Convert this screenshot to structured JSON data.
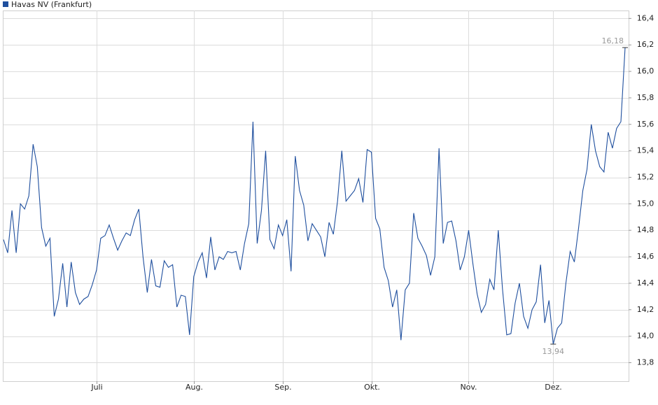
{
  "chart_data": {
    "type": "line",
    "categories": [
      null,
      null,
      null,
      null,
      null,
      null,
      null,
      null,
      null,
      null,
      null,
      null,
      null,
      null,
      null,
      null,
      null,
      null,
      null,
      null,
      null,
      null,
      "Juli",
      null,
      null,
      null,
      null,
      null,
      null,
      null,
      null,
      null,
      null,
      null,
      null,
      null,
      null,
      null,
      null,
      null,
      null,
      null,
      null,
      null,
      null,
      "Aug.",
      null,
      null,
      null,
      null,
      null,
      null,
      null,
      null,
      null,
      null,
      null,
      null,
      null,
      null,
      null,
      null,
      null,
      null,
      null,
      null,
      "Sep.",
      null,
      null,
      null,
      null,
      null,
      null,
      null,
      null,
      null,
      null,
      null,
      null,
      null,
      null,
      null,
      null,
      null,
      null,
      null,
      null,
      "Okt.",
      null,
      null,
      null,
      null,
      null,
      null,
      null,
      null,
      null,
      null,
      null,
      null,
      null,
      null,
      null,
      null,
      null,
      null,
      null,
      null,
      null,
      null,
      "Nov.",
      null,
      null,
      null,
      null,
      null,
      null,
      null,
      null,
      null,
      null,
      null,
      null,
      null,
      null,
      null,
      null,
      null,
      null,
      null,
      "Dez.",
      null,
      null,
      null,
      null,
      null,
      null,
      null,
      null,
      null,
      null,
      null,
      null,
      null,
      null,
      null,
      null,
      null
    ],
    "series": [
      {
        "name": "Havas NV (Frankfurt)",
        "color": "#1f4f9e",
        "values": [
          14.73,
          14.63,
          14.95,
          14.63,
          15.0,
          14.96,
          15.06,
          15.45,
          15.28,
          14.82,
          14.68,
          14.74,
          14.15,
          14.28,
          14.55,
          14.22,
          14.56,
          14.33,
          14.24,
          14.28,
          14.3,
          14.39,
          14.5,
          14.74,
          14.76,
          14.84,
          14.74,
          14.65,
          14.72,
          14.78,
          14.76,
          14.88,
          14.96,
          14.6,
          14.33,
          14.58,
          14.38,
          14.37,
          14.57,
          14.52,
          14.54,
          14.22,
          14.31,
          14.3,
          14.01,
          14.45,
          14.56,
          14.63,
          14.44,
          14.75,
          14.5,
          14.6,
          14.58,
          14.64,
          14.63,
          14.64,
          14.5,
          14.7,
          14.85,
          15.62,
          14.7,
          14.95,
          15.4,
          14.73,
          14.66,
          14.84,
          14.76,
          14.88,
          14.49,
          15.36,
          15.1,
          14.99,
          14.72,
          14.85,
          14.8,
          14.75,
          14.6,
          14.86,
          14.77,
          15.02,
          15.4,
          15.02,
          15.06,
          15.1,
          15.19,
          15.01,
          15.41,
          15.39,
          14.89,
          14.81,
          14.52,
          14.42,
          14.22,
          14.35,
          13.97,
          14.35,
          14.4,
          14.93,
          14.74,
          14.68,
          14.61,
          14.46,
          14.6,
          15.42,
          14.7,
          14.86,
          14.87,
          14.72,
          14.5,
          14.6,
          14.8,
          14.55,
          14.32,
          14.18,
          14.24,
          14.43,
          14.35,
          14.8,
          14.36,
          14.01,
          14.02,
          14.25,
          14.4,
          14.15,
          14.06,
          14.2,
          14.26,
          14.54,
          14.1,
          14.27,
          13.94,
          14.06,
          14.1,
          14.4,
          14.64,
          14.56,
          14.82,
          15.1,
          15.26,
          15.6,
          15.4,
          15.28,
          15.24,
          15.54,
          15.42,
          15.57,
          15.62,
          16.18
        ],
        "value_labels": [
          null,
          null,
          null,
          null,
          null,
          null,
          null,
          null,
          null,
          null,
          null,
          null,
          null,
          null,
          null,
          null,
          null,
          null,
          null,
          null,
          null,
          null,
          null,
          null,
          null,
          null,
          null,
          null,
          null,
          null,
          null,
          null,
          null,
          null,
          null,
          null,
          null,
          null,
          null,
          null,
          null,
          null,
          null,
          null,
          null,
          null,
          null,
          null,
          null,
          null,
          null,
          null,
          null,
          null,
          null,
          null,
          null,
          null,
          null,
          null,
          null,
          null,
          null,
          null,
          null,
          null,
          null,
          null,
          null,
          null,
          null,
          null,
          null,
          null,
          null,
          null,
          null,
          null,
          null,
          null,
          null,
          null,
          null,
          null,
          null,
          null,
          null,
          null,
          null,
          null,
          null,
          null,
          null,
          null,
          null,
          null,
          null,
          null,
          null,
          null,
          null,
          null,
          null,
          null,
          null,
          null,
          null,
          null,
          null,
          null,
          null,
          null,
          null,
          null,
          null,
          null,
          null,
          null,
          null,
          null,
          null,
          null,
          null,
          null,
          null,
          null,
          null,
          null,
          null,
          null,
          "13,94",
          null,
          null,
          null,
          null,
          null,
          null,
          null,
          null,
          null,
          null,
          null,
          null,
          null,
          null,
          null,
          null,
          "16,18"
        ]
      }
    ],
    "ylim": [
      13.66,
      16.46
    ],
    "yticks": [
      {
        "value": 13.8,
        "label": "13,8"
      },
      {
        "value": 14.0,
        "label": "14,0"
      },
      {
        "value": 14.2,
        "label": "14,2"
      },
      {
        "value": 14.4,
        "label": "14,4"
      },
      {
        "value": 14.6,
        "label": "14,6"
      },
      {
        "value": 14.8,
        "label": "14,8"
      },
      {
        "value": 15.0,
        "label": "15,0"
      },
      {
        "value": 15.2,
        "label": "15,2"
      },
      {
        "value": 15.4,
        "label": "15,4"
      },
      {
        "value": 15.6,
        "label": "15,6"
      },
      {
        "value": 15.8,
        "label": "15,8"
      },
      {
        "value": 16.0,
        "label": "16,0"
      },
      {
        "value": 16.2,
        "label": "16,2"
      },
      {
        "value": 16.4,
        "label": "16,4"
      }
    ],
    "grid": true,
    "legend": "top-left"
  }
}
